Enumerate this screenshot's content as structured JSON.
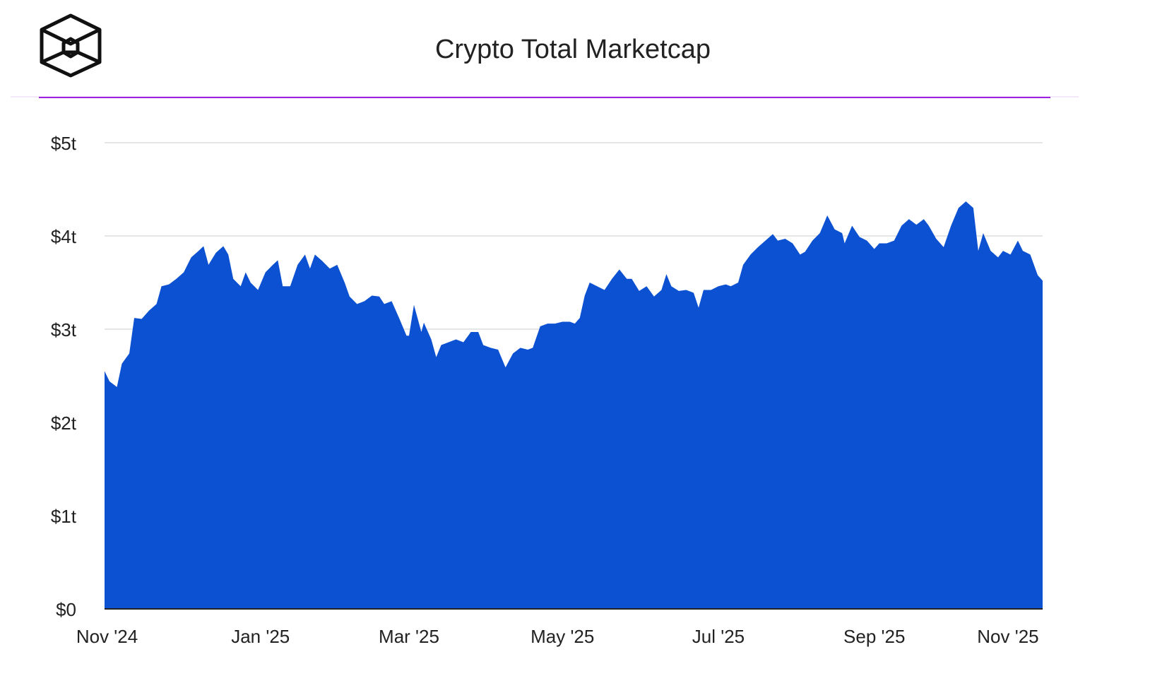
{
  "chart_data": {
    "type": "area",
    "title": "Crypto Total Marketcap",
    "color": "#0b51d1",
    "grid": true,
    "x": [
      0,
      2,
      5,
      7,
      10,
      12,
      15,
      18,
      21,
      23,
      26,
      29,
      32,
      35,
      38,
      40,
      42,
      45,
      48,
      50,
      52,
      55,
      57,
      59,
      62,
      65,
      68,
      70,
      72,
      75,
      78,
      81,
      83,
      85,
      88,
      91,
      94,
      97,
      99,
      102,
      105,
      108,
      111,
      113,
      116,
      119,
      122,
      123,
      125,
      128,
      129,
      132,
      134,
      136,
      139,
      142,
      145,
      148,
      151,
      153,
      156,
      159,
      162,
      165,
      168,
      171,
      173,
      176,
      179,
      182,
      185,
      188,
      190,
      192,
      194,
      196,
      199,
      202,
      205,
      208,
      211,
      213,
      216,
      219,
      222,
      225,
      227,
      229,
      232,
      235,
      238,
      240,
      242,
      245,
      248,
      251,
      253,
      256,
      258,
      261,
      264,
      267,
      270,
      272,
      275,
      278,
      281,
      283,
      286,
      289,
      292,
      295,
      298,
      299,
      302,
      305,
      308,
      311,
      313,
      316,
      319,
      322,
      325,
      328,
      331,
      333,
      336,
      339,
      342,
      345,
      348,
      351,
      353,
      355,
      358,
      361,
      363,
      366,
      369,
      371,
      374,
      377,
      379
    ],
    "values": [
      2.55,
      2.44,
      2.38,
      2.63,
      2.74,
      3.12,
      3.11,
      3.2,
      3.27,
      3.46,
      3.48,
      3.54,
      3.61,
      3.77,
      3.84,
      3.89,
      3.69,
      3.82,
      3.89,
      3.8,
      3.54,
      3.46,
      3.61,
      3.5,
      3.42,
      3.61,
      3.69,
      3.74,
      3.46,
      3.46,
      3.69,
      3.8,
      3.65,
      3.8,
      3.73,
      3.65,
      3.69,
      3.5,
      3.35,
      3.27,
      3.3,
      3.36,
      3.35,
      3.27,
      3.3,
      3.12,
      2.93,
      2.93,
      3.26,
      2.97,
      3.07,
      2.89,
      2.7,
      2.83,
      2.86,
      2.89,
      2.86,
      2.97,
      2.97,
      2.83,
      2.8,
      2.78,
      2.59,
      2.74,
      2.8,
      2.78,
      2.8,
      3.03,
      3.06,
      3.06,
      3.08,
      3.08,
      3.06,
      3.12,
      3.36,
      3.5,
      3.46,
      3.42,
      3.54,
      3.64,
      3.54,
      3.54,
      3.41,
      3.46,
      3.35,
      3.42,
      3.59,
      3.46,
      3.41,
      3.42,
      3.39,
      3.23,
      3.42,
      3.42,
      3.46,
      3.48,
      3.46,
      3.5,
      3.69,
      3.8,
      3.88,
      3.95,
      4.02,
      3.95,
      3.97,
      3.92,
      3.8,
      3.83,
      3.95,
      4.03,
      4.22,
      4.07,
      4.03,
      3.92,
      4.11,
      3.99,
      3.95,
      3.86,
      3.92,
      3.92,
      3.95,
      4.11,
      4.18,
      4.12,
      4.18,
      4.11,
      3.97,
      3.88,
      4.11,
      4.3,
      4.37,
      4.3,
      3.84,
      4.03,
      3.84,
      3.77,
      3.84,
      3.8,
      3.95,
      3.84,
      3.8,
      3.58,
      3.52
    ],
    "xlim": [
      0,
      379
    ],
    "xticks": [
      {
        "value": 1,
        "label": "Nov '24"
      },
      {
        "value": 63,
        "label": "Jan '25"
      },
      {
        "value": 123,
        "label": "Mar '25"
      },
      {
        "value": 185,
        "label": "May '25"
      },
      {
        "value": 248,
        "label": "Jul '25"
      },
      {
        "value": 311,
        "label": "Sep '25"
      },
      {
        "value": 365,
        "label": "Nov '25"
      }
    ],
    "ylim": [
      0,
      5
    ],
    "yticks": [
      {
        "value": 0,
        "label": "$0"
      },
      {
        "value": 1,
        "label": "$1t"
      },
      {
        "value": 2,
        "label": "$2t"
      },
      {
        "value": 3,
        "label": "$3t"
      },
      {
        "value": 4,
        "label": "$4t"
      },
      {
        "value": 5,
        "label": "$5t"
      }
    ]
  }
}
